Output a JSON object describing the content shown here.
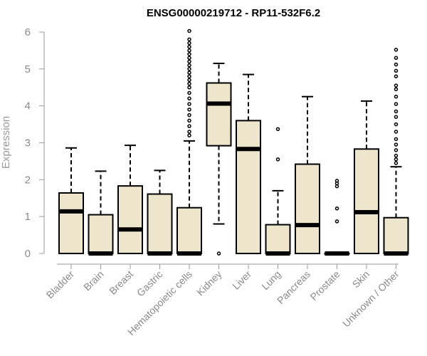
{
  "chart_data": {
    "type": "boxplot",
    "title": "ENSG00000219712 - RP11-532F6.2",
    "ylabel": "Expression",
    "xlabel": "",
    "ylim": [
      0,
      6
    ],
    "yticks": [
      0,
      1,
      2,
      3,
      4,
      5,
      6
    ],
    "box_color": "#ede6cc",
    "categories": [
      "Bladder",
      "Brain",
      "Breast",
      "Gastric",
      "Hematopoietic cells",
      "Kidney",
      "Liver",
      "Lung",
      "Pancreas",
      "Prostate",
      "Skin",
      "Unknown / Other"
    ],
    "boxes": [
      {
        "category": "Bladder",
        "q1": 0,
        "median": 1.14,
        "q3": 1.64,
        "whisker_low": 0,
        "whisker_high": 2.86,
        "outliers": []
      },
      {
        "category": "Brain",
        "q1": 0,
        "median": 0,
        "q3": 1.05,
        "whisker_low": 0,
        "whisker_high": 2.23,
        "outliers": []
      },
      {
        "category": "Breast",
        "q1": 0,
        "median": 0.65,
        "q3": 1.83,
        "whisker_low": 0,
        "whisker_high": 2.93,
        "outliers": []
      },
      {
        "category": "Gastric",
        "q1": 0,
        "median": 0,
        "q3": 1.61,
        "whisker_low": 0,
        "whisker_high": 2.25,
        "outliers": []
      },
      {
        "category": "Hematopoietic cells",
        "q1": 0,
        "median": 0,
        "q3": 1.24,
        "whisker_low": 0,
        "whisker_high": 3.05,
        "outliers": [
          3.2,
          3.3,
          3.45,
          3.6,
          3.75,
          3.9,
          4.05,
          4.2,
          4.35,
          4.5,
          4.6,
          4.7,
          4.8,
          4.9,
          5.0,
          5.1,
          5.2,
          5.3,
          5.4,
          5.5,
          5.6,
          5.7,
          5.8,
          6.03
        ]
      },
      {
        "category": "Kidney",
        "q1": 2.92,
        "median": 4.06,
        "q3": 4.62,
        "whisker_low": 0.8,
        "whisker_high": 5.15,
        "outliers": [
          0
        ]
      },
      {
        "category": "Liver",
        "q1": 0,
        "median": 2.83,
        "q3": 3.6,
        "whisker_low": 0,
        "whisker_high": 4.85,
        "outliers": []
      },
      {
        "category": "Lung",
        "q1": 0,
        "median": 0,
        "q3": 0.78,
        "whisker_low": 0,
        "whisker_high": 1.7,
        "outliers": [
          2.55,
          3.37
        ]
      },
      {
        "category": "Pancreas",
        "q1": 0,
        "median": 0.77,
        "q3": 2.42,
        "whisker_low": 0,
        "whisker_high": 4.25,
        "outliers": []
      },
      {
        "category": "Prostate",
        "q1": 0,
        "median": 0,
        "q3": 0,
        "whisker_low": 0,
        "whisker_high": 0,
        "outliers": [
          0.87,
          1.22,
          1.82,
          1.9,
          1.97
        ]
      },
      {
        "category": "Skin",
        "q1": 0,
        "median": 1.12,
        "q3": 2.83,
        "whisker_low": 0,
        "whisker_high": 4.13,
        "outliers": []
      },
      {
        "category": "Unknown / Other",
        "q1": 0,
        "median": 0,
        "q3": 0.97,
        "whisker_low": 0,
        "whisker_high": 2.35,
        "outliers": [
          2.45,
          2.55,
          2.65,
          2.8,
          2.95,
          3.1,
          3.3,
          3.5,
          3.7,
          3.85,
          4.05,
          4.25,
          4.45,
          4.55,
          4.8,
          4.95,
          5.12,
          5.3,
          5.52
        ]
      }
    ]
  }
}
